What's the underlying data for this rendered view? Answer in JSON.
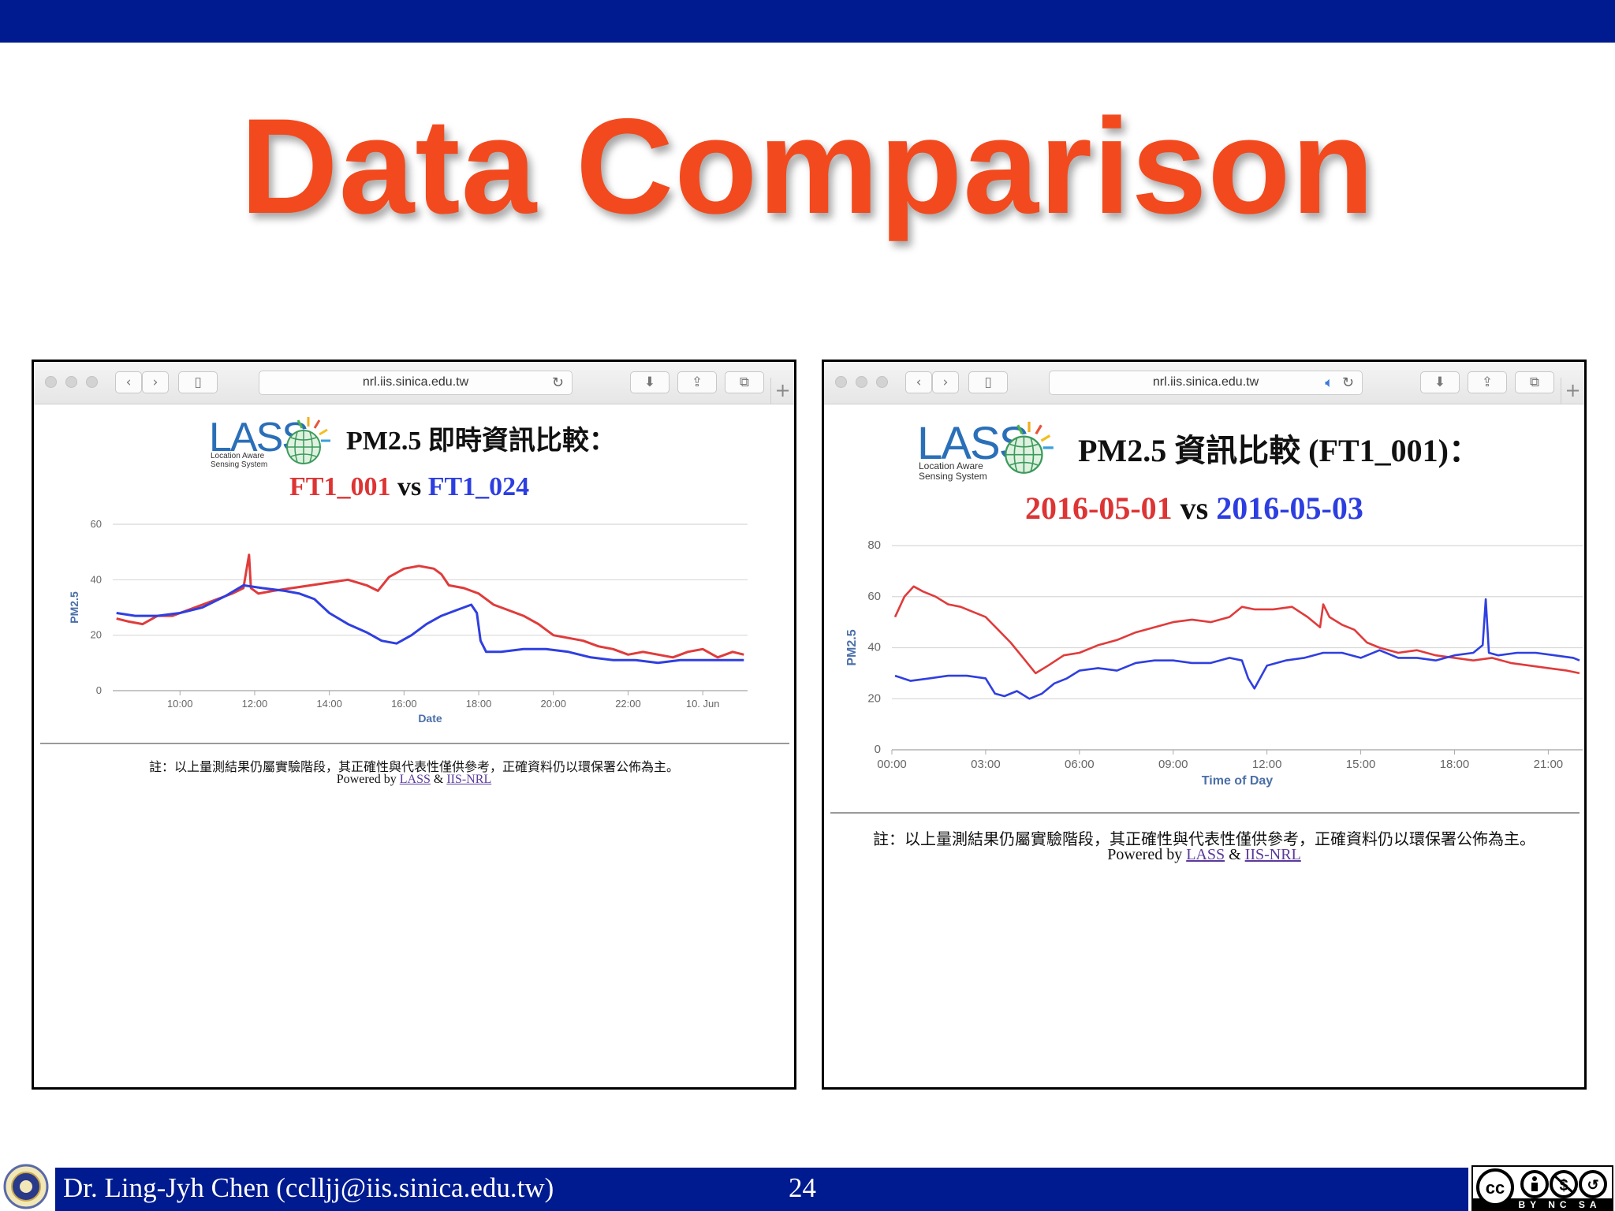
{
  "slide": {
    "title": "Data Comparison",
    "footer_author": "Dr. Ling-Jyh Chen (cclljj@iis.sinica.edu.tw)",
    "page_number": "24",
    "license": "BY NC SA"
  },
  "colors": {
    "banner": "#001a8f",
    "title": "#f24a1e",
    "red_series": "#e03b3b",
    "blue_series": "#2f3fe0"
  },
  "left_window": {
    "url": "nrl.iis.sinica.edu.tw",
    "logo": {
      "word": "LASS",
      "subtitle_line1": "Location Aware",
      "subtitle_line2": "Sensing System"
    },
    "heading": "PM2.5 即時資訊比較：",
    "compare_a": "FT1_001",
    "vs": "vs",
    "compare_b": "FT1_024",
    "note": "註：以上量測結果仍屬實驗階段，其正確性與代表性僅供參考，正確資料仍以環保署公佈為主。",
    "powered_by": "Powered by",
    "link_lass": "LASS",
    "amp": "&",
    "link_iis": "IIS-NRL"
  },
  "right_window": {
    "url": "nrl.iis.sinica.edu.tw",
    "logo": {
      "word": "LASS",
      "subtitle_line1": "Location Aware",
      "subtitle_line2": "Sensing System"
    },
    "heading": "PM2.5 資訊比較 (FT1_001)：",
    "compare_a": "2016-05-01",
    "vs": "vs",
    "compare_b": "2016-05-03",
    "note": "註：以上量測結果仍屬實驗階段，其正確性與代表性僅供參考，正確資料仍以環保署公佈為主。",
    "powered_by": "Powered by",
    "link_lass": "LASS",
    "amp": "&",
    "link_iis": "IIS-NRL"
  },
  "chart_data": [
    {
      "type": "line",
      "xlabel": "Date",
      "ylabel": "PM2.5",
      "x_tick_labels": [
        "10:00",
        "12:00",
        "14:00",
        "16:00",
        "18:00",
        "20:00",
        "22:00",
        "10. Jun"
      ],
      "x_tick_hours": [
        10,
        12,
        14,
        16,
        18,
        20,
        22,
        24
      ],
      "xlim_hours": [
        8.2,
        25.2
      ],
      "ylim": [
        0,
        60
      ],
      "y_ticks": [
        0,
        20,
        40,
        60
      ],
      "grid": true,
      "series": [
        {
          "color": "#e03b3b",
          "x": [
            8.3,
            8.6,
            9.0,
            9.4,
            9.8,
            10.2,
            10.6,
            11.0,
            11.4,
            11.7,
            11.85,
            11.9,
            12.1,
            12.5,
            13.0,
            13.5,
            14.0,
            14.5,
            15.0,
            15.3,
            15.6,
            16.0,
            16.4,
            16.8,
            17.0,
            17.2,
            17.6,
            18.0,
            18.4,
            18.8,
            19.2,
            19.6,
            20.0,
            20.4,
            20.8,
            21.2,
            21.6,
            22.0,
            22.4,
            22.8,
            23.2,
            23.6,
            24.0,
            24.4,
            24.8,
            25.1
          ],
          "y": [
            26,
            25,
            24,
            27,
            27,
            29,
            31,
            33,
            35,
            37,
            49,
            37,
            35,
            36,
            37,
            38,
            39,
            40,
            38,
            36,
            41,
            44,
            45,
            44,
            42,
            38,
            37,
            35,
            31,
            29,
            27,
            24,
            20,
            19,
            18,
            16,
            15,
            13,
            14,
            13,
            12,
            14,
            15,
            12,
            14,
            13
          ]
        },
        {
          "color": "#2f3fe0",
          "x": [
            8.3,
            8.8,
            9.4,
            10.0,
            10.6,
            11.2,
            11.7,
            12.2,
            12.8,
            13.2,
            13.6,
            14.0,
            14.5,
            15.0,
            15.4,
            15.8,
            16.2,
            16.6,
            17.0,
            17.4,
            17.8,
            17.95,
            18.05,
            18.2,
            18.6,
            19.2,
            19.8,
            20.4,
            21.0,
            21.6,
            22.2,
            22.8,
            23.4,
            24.0,
            24.6,
            25.1
          ],
          "y": [
            28,
            27,
            27,
            28,
            30,
            34,
            38,
            37,
            36,
            35,
            33,
            28,
            24,
            21,
            18,
            17,
            20,
            24,
            27,
            29,
            31,
            28,
            18,
            14,
            14,
            15,
            15,
            14,
            12,
            11,
            11,
            10,
            11,
            11,
            11,
            11
          ]
        }
      ]
    },
    {
      "type": "line",
      "xlabel": "Time of Day",
      "ylabel": "PM2.5",
      "x_tick_labels": [
        "00:00",
        "03:00",
        "06:00",
        "09:00",
        "12:00",
        "15:00",
        "18:00",
        "21:00"
      ],
      "x_tick_hours": [
        0,
        3,
        6,
        9,
        12,
        15,
        18,
        21
      ],
      "xlim_hours": [
        0,
        22.1
      ],
      "ylim": [
        0,
        80
      ],
      "y_ticks": [
        0,
        20,
        40,
        60,
        80
      ],
      "grid": true,
      "series": [
        {
          "color": "#e03b3b",
          "x": [
            0.1,
            0.4,
            0.7,
            1.0,
            1.4,
            1.8,
            2.2,
            2.6,
            3.0,
            3.4,
            3.8,
            4.2,
            4.6,
            5.0,
            5.5,
            6.0,
            6.6,
            7.2,
            7.8,
            8.4,
            9.0,
            9.6,
            10.2,
            10.8,
            11.2,
            11.6,
            12.2,
            12.8,
            13.3,
            13.7,
            13.8,
            14.0,
            14.4,
            14.8,
            15.2,
            15.6,
            16.2,
            16.8,
            17.4,
            18.0,
            18.6,
            19.2,
            19.8,
            20.4,
            21.0,
            21.6,
            22.0
          ],
          "y": [
            52,
            60,
            64,
            62,
            60,
            57,
            56,
            54,
            52,
            47,
            42,
            36,
            30,
            33,
            37,
            38,
            41,
            43,
            46,
            48,
            50,
            51,
            50,
            52,
            56,
            55,
            55,
            56,
            52,
            48,
            57,
            52,
            49,
            47,
            42,
            40,
            38,
            39,
            37,
            36,
            35,
            36,
            34,
            33,
            32,
            31,
            30
          ]
        },
        {
          "color": "#2f3fe0",
          "x": [
            0.1,
            0.6,
            1.2,
            1.8,
            2.4,
            3.0,
            3.3,
            3.6,
            4.0,
            4.4,
            4.8,
            5.2,
            5.6,
            6.0,
            6.6,
            7.2,
            7.8,
            8.4,
            9.0,
            9.6,
            10.2,
            10.8,
            11.2,
            11.4,
            11.6,
            12.0,
            12.6,
            13.2,
            13.8,
            14.4,
            15.0,
            15.6,
            16.2,
            16.8,
            17.4,
            18.0,
            18.6,
            18.9,
            19.0,
            19.1,
            19.4,
            20.0,
            20.6,
            21.2,
            21.8,
            22.0
          ],
          "y": [
            29,
            27,
            28,
            29,
            29,
            28,
            22,
            21,
            23,
            20,
            22,
            26,
            28,
            31,
            32,
            31,
            34,
            35,
            35,
            34,
            34,
            36,
            35,
            28,
            24,
            33,
            35,
            36,
            38,
            38,
            36,
            39,
            36,
            36,
            35,
            37,
            38,
            41,
            59,
            38,
            37,
            38,
            38,
            37,
            36,
            35
          ]
        }
      ]
    }
  ]
}
